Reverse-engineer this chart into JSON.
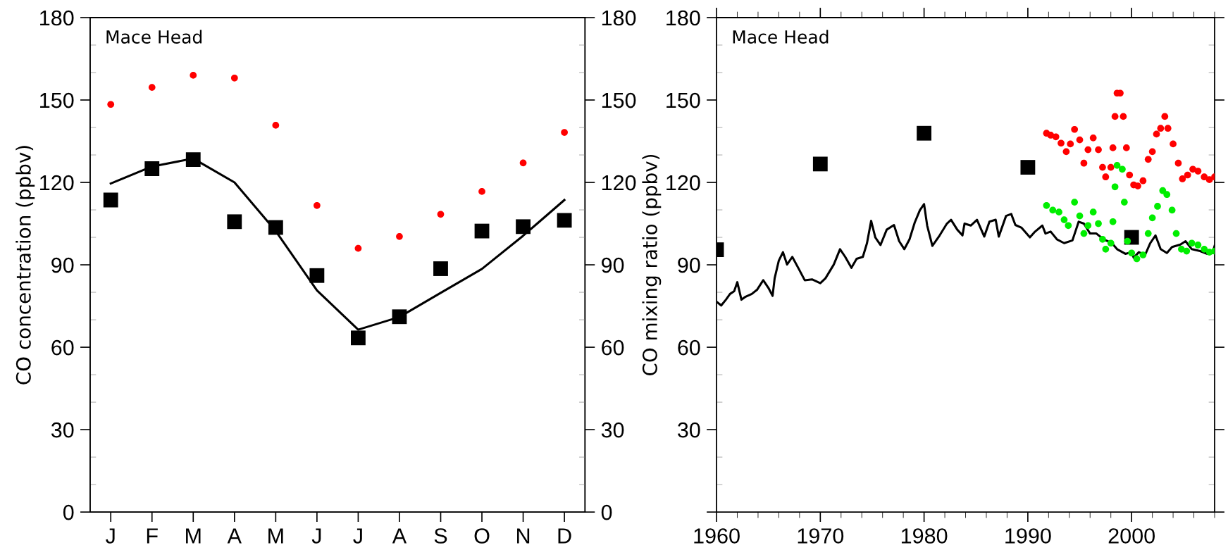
{
  "chart_data": [
    {
      "type": "scatter",
      "ylabel": "CO concentration (ppbv)",
      "annotations": [
        "Mace Head"
      ],
      "categories": [
        "J",
        "F",
        "M",
        "A",
        "M",
        "J",
        "J",
        "A",
        "S",
        "O",
        "N",
        "D"
      ],
      "ylim": [
        0,
        180
      ],
      "yticks": [
        0,
        30,
        60,
        90,
        120,
        150,
        180
      ],
      "y2lim": [
        0,
        180
      ],
      "y2ticks": [
        0,
        30,
        60,
        90,
        120,
        150,
        180
      ],
      "grid": false,
      "legend": false,
      "series": [
        {
          "marker": "circle",
          "color": "#ff0000",
          "values": [
            148.4,
            154.6,
            159.0,
            158.0,
            140.8,
            111.6,
            96.0,
            100.3,
            108.4,
            116.7,
            127.1,
            138.2
          ]
        },
        {
          "type": "line",
          "marker": "none",
          "line_style": "solid",
          "color": "#000000",
          "values": [
            119.6,
            125.8,
            128.7,
            120.0,
            102.3,
            80.7,
            66.4,
            71.0,
            79.8,
            88.5,
            100.6,
            113.6
          ]
        },
        {
          "marker": "square",
          "color": "#000000",
          "values": [
            113.6,
            125.0,
            128.3,
            105.7,
            103.6,
            86.1,
            63.4,
            71.1,
            88.6,
            102.3,
            103.9,
            106.2
          ]
        }
      ]
    },
    {
      "type": "scatter",
      "ylabel": "CO mixing ratio (ppbv)",
      "annotations": [
        "Mace Head"
      ],
      "xlim": [
        1960,
        2008
      ],
      "xticks": [
        1960,
        1970,
        1980,
        1990,
        2000
      ],
      "ylim": [
        0,
        180
      ],
      "yticks": [
        {
          "value": 0,
          "label": null
        },
        30,
        60,
        90,
        120,
        150,
        180
      ],
      "grid": false,
      "legend": false,
      "series": [
        {
          "type": "line",
          "marker": "none",
          "line_style": "solid",
          "color": "#000000",
          "x": [
            1960.0,
            1960.45,
            1960.9,
            1961.3,
            1961.7,
            1962.0,
            1962.4,
            1962.8,
            1963.4,
            1963.9,
            1964.5,
            1965.0,
            1965.4,
            1965.6,
            1966.0,
            1966.4,
            1966.8,
            1967.3,
            1967.9,
            1968.5,
            1969.2,
            1970.0,
            1970.5,
            1971.3,
            1971.9,
            1972.4,
            1973.0,
            1973.5,
            1974.1,
            1974.5,
            1974.9,
            1975.3,
            1975.8,
            1976.4,
            1977.1,
            1977.6,
            1978.1,
            1978.6,
            1979.1,
            1979.6,
            1980.0,
            1980.3,
            1980.8,
            1981.5,
            1982.2,
            1982.6,
            1983.2,
            1983.7,
            1983.9,
            1984.5,
            1985.1,
            1985.8,
            1986.3,
            1986.9,
            1987.2,
            1987.9,
            1988.4,
            1988.8,
            1989.4,
            1990.2,
            1990.7,
            1991.4,
            1991.7,
            1992.2,
            1992.8,
            1993.5,
            1994.3,
            1994.9,
            1995.4,
            1996.0,
            1996.6,
            1997.3,
            1998.1,
            1998.6,
            1999.4,
            2000.0,
            2000.2,
            2000.7,
            2001.3,
            2001.8,
            2002.3,
            2002.8,
            2003.4,
            2003.9,
            2004.7,
            2005.2,
            2005.8,
            2006.6,
            2007.3,
            2007.8,
            2008.0
          ],
          "values": [
            76.6,
            75.2,
            77.3,
            79.4,
            80.4,
            83.7,
            77.3,
            78.4,
            79.4,
            80.9,
            84.4,
            81.6,
            78.7,
            85.1,
            91.5,
            94.6,
            90.1,
            92.9,
            88.7,
            84.4,
            84.7,
            83.3,
            85.1,
            90.1,
            95.7,
            92.9,
            88.9,
            92.2,
            92.9,
            97.9,
            106.0,
            100.0,
            97.2,
            102.8,
            104.5,
            98.6,
            95.7,
            99.3,
            105.4,
            109.9,
            112.1,
            104.3,
            96.9,
            100.7,
            105.0,
            106.4,
            102.8,
            100.7,
            105.0,
            104.3,
            106.4,
            100.3,
            105.7,
            106.4,
            100.3,
            107.8,
            108.5,
            104.5,
            103.5,
            100.0,
            102.1,
            104.3,
            101.4,
            102.1,
            99.3,
            97.9,
            98.9,
            105.7,
            105.0,
            101.4,
            101.4,
            99.3,
            97.9,
            95.7,
            94.0,
            94.6,
            92.6,
            94.6,
            93.6,
            97.9,
            100.7,
            95.7,
            94.3,
            96.5,
            97.4,
            98.6,
            95.7,
            95.0,
            94.0,
            94.3,
            96.9
          ]
        },
        {
          "marker": "circle",
          "color": "#ff0000",
          "x": [
            1991.8,
            1992.2,
            1992.7,
            1993.2,
            1993.7,
            1994.1,
            1994.5,
            1995.0,
            1995.4,
            1995.8,
            1996.3,
            1996.8,
            1997.2,
            1997.5,
            1998.0,
            1998.2,
            1998.4,
            1998.6,
            1998.9,
            1999.2,
            1999.5,
            1999.8,
            2000.2,
            2000.6,
            2001.1,
            2001.6,
            2002.0,
            2002.4,
            2002.8,
            2003.2,
            2003.5,
            2004.0,
            2004.5,
            2004.9,
            2005.4,
            2005.9,
            2006.4,
            2007.0,
            2007.5,
            2008.0
          ],
          "values": [
            137.9,
            137.2,
            136.6,
            134.3,
            131.2,
            134.0,
            139.3,
            135.5,
            127.0,
            131.9,
            136.2,
            131.9,
            125.5,
            122.0,
            125.5,
            132.6,
            144.0,
            152.5,
            152.5,
            144.0,
            132.6,
            122.7,
            119.1,
            118.7,
            120.6,
            128.4,
            131.2,
            137.6,
            139.7,
            144.0,
            139.7,
            134.0,
            127.0,
            121.3,
            122.7,
            124.8,
            124.1,
            122.0,
            121.0,
            122.0
          ]
        },
        {
          "marker": "square",
          "color": "#000000",
          "x": [
            1960,
            1970,
            1980,
            1990,
            2000
          ],
          "values": [
            95.5,
            126.7,
            137.9,
            125.5,
            100.0
          ]
        },
        {
          "marker": "circle",
          "color": "#00ee00",
          "x": [
            1991.8,
            1992.4,
            1993.0,
            1993.5,
            1993.9,
            1994.5,
            1995.0,
            1995.4,
            1995.8,
            1996.3,
            1996.8,
            1997.2,
            1997.5,
            1998.0,
            1998.2,
            1998.4,
            1998.6,
            1999.1,
            1999.3,
            1999.6,
            2000.0,
            2000.5,
            2001.1,
            2001.6,
            2002.0,
            2002.5,
            2003.0,
            2003.4,
            2003.9,
            2004.3,
            2004.8,
            2005.3,
            2005.8,
            2006.4,
            2007.0,
            2007.5,
            2008.0
          ],
          "values": [
            111.6,
            109.9,
            109.2,
            106.4,
            104.3,
            112.8,
            107.8,
            101.4,
            104.3,
            109.2,
            105.0,
            99.3,
            95.7,
            97.9,
            105.7,
            118.4,
            126.2,
            124.8,
            112.8,
            98.6,
            94.3,
            92.2,
            93.6,
            101.4,
            107.1,
            111.3,
            117.0,
            115.6,
            109.9,
            101.4,
            95.7,
            95.0,
            97.9,
            97.2,
            95.7,
            94.6,
            95.0
          ]
        }
      ]
    }
  ]
}
